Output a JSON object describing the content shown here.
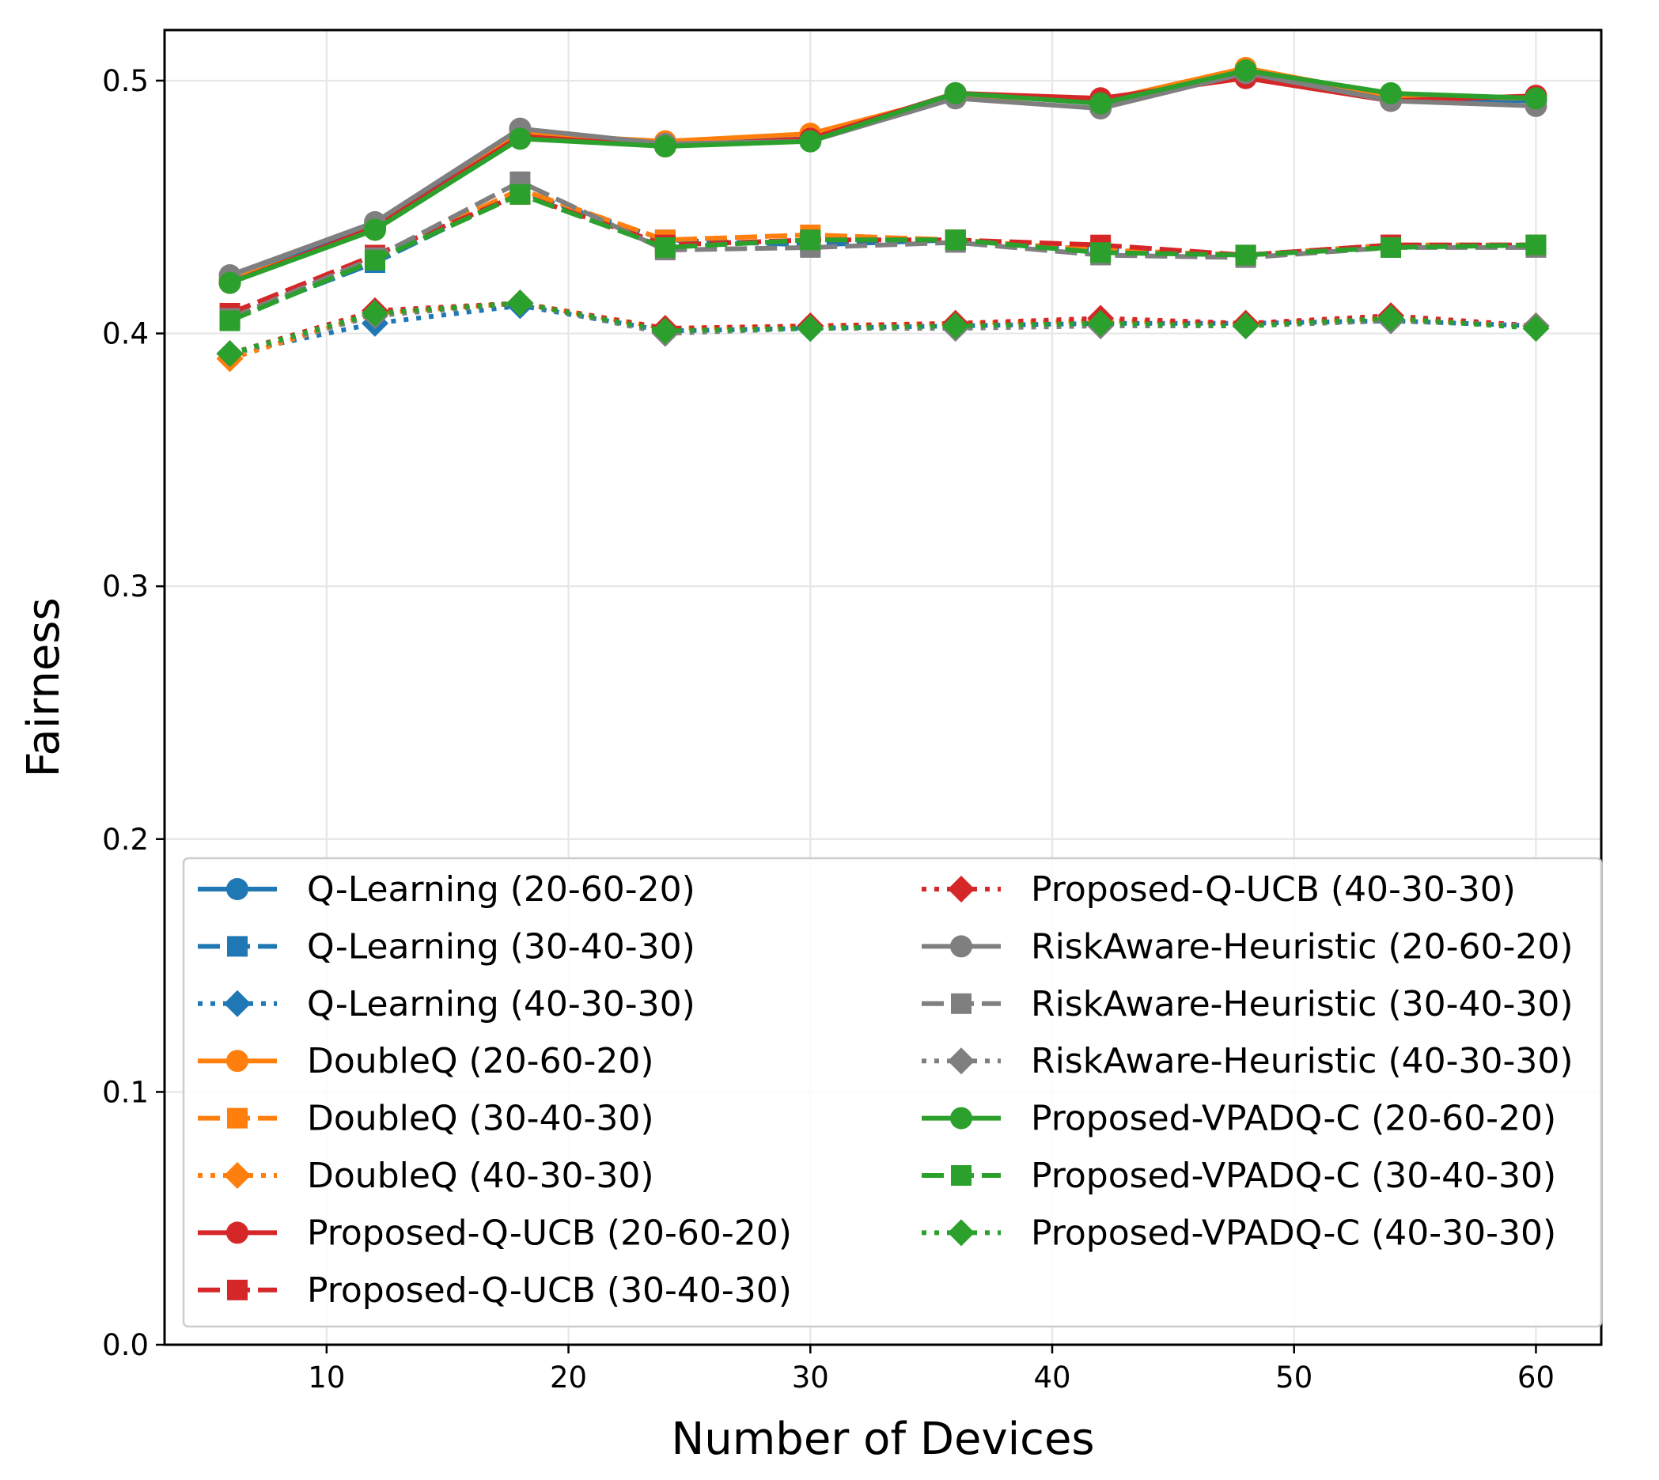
{
  "chart_data": {
    "type": "line",
    "title": "",
    "xlabel": "Number of Devices",
    "ylabel": "Fairness",
    "xlim": [
      3.3,
      62.7
    ],
    "ylim": [
      0.0,
      0.52
    ],
    "xticks": [
      10,
      20,
      30,
      40,
      50,
      60
    ],
    "xtick_labels": [
      "10",
      "20",
      "30",
      "40",
      "50",
      "60"
    ],
    "yticks": [
      0.0,
      0.1,
      0.2,
      0.3,
      0.4,
      0.5
    ],
    "ytick_labels": [
      "0.0",
      "0.1",
      "0.2",
      "0.3",
      "0.4",
      "0.5"
    ],
    "grid": true,
    "legend_position": "lower-center",
    "x": [
      6,
      12,
      18,
      24,
      30,
      36,
      42,
      48,
      54,
      60
    ],
    "series": [
      {
        "name": "Q-Learning (20-60-20)",
        "color": "#1f77b4",
        "style": "solid",
        "marker": "circle",
        "values": [
          0.421,
          0.442,
          0.479,
          0.475,
          0.477,
          0.495,
          0.491,
          0.503,
          0.493,
          0.492
        ]
      },
      {
        "name": "Q-Learning (30-40-30)",
        "color": "#1f77b4",
        "style": "dashed",
        "marker": "square",
        "values": [
          0.406,
          0.428,
          0.456,
          0.437,
          0.435,
          0.437,
          0.433,
          0.431,
          0.435,
          0.435
        ]
      },
      {
        "name": "Q-Learning (40-30-30)",
        "color": "#1f77b4",
        "style": "dotted",
        "marker": "diamond",
        "values": [
          0.392,
          0.404,
          0.411,
          0.401,
          0.402,
          0.403,
          0.404,
          0.404,
          0.405,
          0.403
        ]
      },
      {
        "name": "DoubleQ (20-60-20)",
        "color": "#ff7f0e",
        "style": "solid",
        "marker": "circle",
        "values": [
          0.421,
          0.441,
          0.479,
          0.476,
          0.479,
          0.494,
          0.492,
          0.505,
          0.494,
          0.493
        ]
      },
      {
        "name": "DoubleQ (30-40-30)",
        "color": "#ff7f0e",
        "style": "dashed",
        "marker": "square",
        "values": [
          0.406,
          0.43,
          0.457,
          0.437,
          0.439,
          0.437,
          0.433,
          0.431,
          0.435,
          0.435
        ]
      },
      {
        "name": "DoubleQ (40-30-30)",
        "color": "#ff7f0e",
        "style": "dotted",
        "marker": "diamond",
        "values": [
          0.39,
          0.408,
          0.412,
          0.402,
          0.403,
          0.404,
          0.405,
          0.404,
          0.406,
          0.403
        ]
      },
      {
        "name": "Proposed-Q-UCB (20-60-20)",
        "color": "#d62728",
        "style": "solid",
        "marker": "circle",
        "values": [
          0.42,
          0.442,
          0.478,
          0.474,
          0.477,
          0.495,
          0.493,
          0.501,
          0.492,
          0.494
        ]
      },
      {
        "name": "Proposed-Q-UCB (30-40-30)",
        "color": "#d62728",
        "style": "dashed",
        "marker": "square",
        "values": [
          0.408,
          0.431,
          0.455,
          0.435,
          0.437,
          0.437,
          0.435,
          0.431,
          0.435,
          0.435
        ]
      },
      {
        "name": "Proposed-Q-UCB (40-30-30)",
        "color": "#d62728",
        "style": "dotted",
        "marker": "diamond",
        "values": [
          0.392,
          0.409,
          0.412,
          0.402,
          0.403,
          0.404,
          0.406,
          0.404,
          0.407,
          0.403
        ]
      },
      {
        "name": "RiskAware-Heuristic (20-60-20)",
        "color": "#7f7f7f",
        "style": "solid",
        "marker": "circle",
        "values": [
          0.423,
          0.444,
          0.481,
          0.475,
          0.476,
          0.493,
          0.489,
          0.503,
          0.492,
          0.49
        ]
      },
      {
        "name": "RiskAware-Heuristic (30-40-30)",
        "color": "#7f7f7f",
        "style": "dashed",
        "marker": "square",
        "values": [
          0.406,
          0.43,
          0.46,
          0.433,
          0.434,
          0.436,
          0.431,
          0.43,
          0.434,
          0.434
        ]
      },
      {
        "name": "RiskAware-Heuristic (40-30-30)",
        "color": "#7f7f7f",
        "style": "dotted",
        "marker": "diamond",
        "values": [
          0.392,
          0.407,
          0.412,
          0.4,
          0.402,
          0.402,
          0.403,
          0.403,
          0.405,
          0.403
        ]
      },
      {
        "name": "Proposed-VPADQ-C (20-60-20)",
        "color": "#2ca02c",
        "style": "solid",
        "marker": "circle",
        "values": [
          0.42,
          0.441,
          0.477,
          0.474,
          0.476,
          0.495,
          0.491,
          0.504,
          0.495,
          0.493
        ]
      },
      {
        "name": "Proposed-VPADQ-C (30-40-30)",
        "color": "#2ca02c",
        "style": "dashed",
        "marker": "square",
        "values": [
          0.405,
          0.429,
          0.455,
          0.434,
          0.437,
          0.437,
          0.432,
          0.431,
          0.434,
          0.435
        ]
      },
      {
        "name": "Proposed-VPADQ-C (40-30-30)",
        "color": "#2ca02c",
        "style": "dotted",
        "marker": "diamond",
        "values": [
          0.392,
          0.408,
          0.412,
          0.401,
          0.402,
          0.403,
          0.404,
          0.403,
          0.406,
          0.402
        ]
      }
    ]
  }
}
